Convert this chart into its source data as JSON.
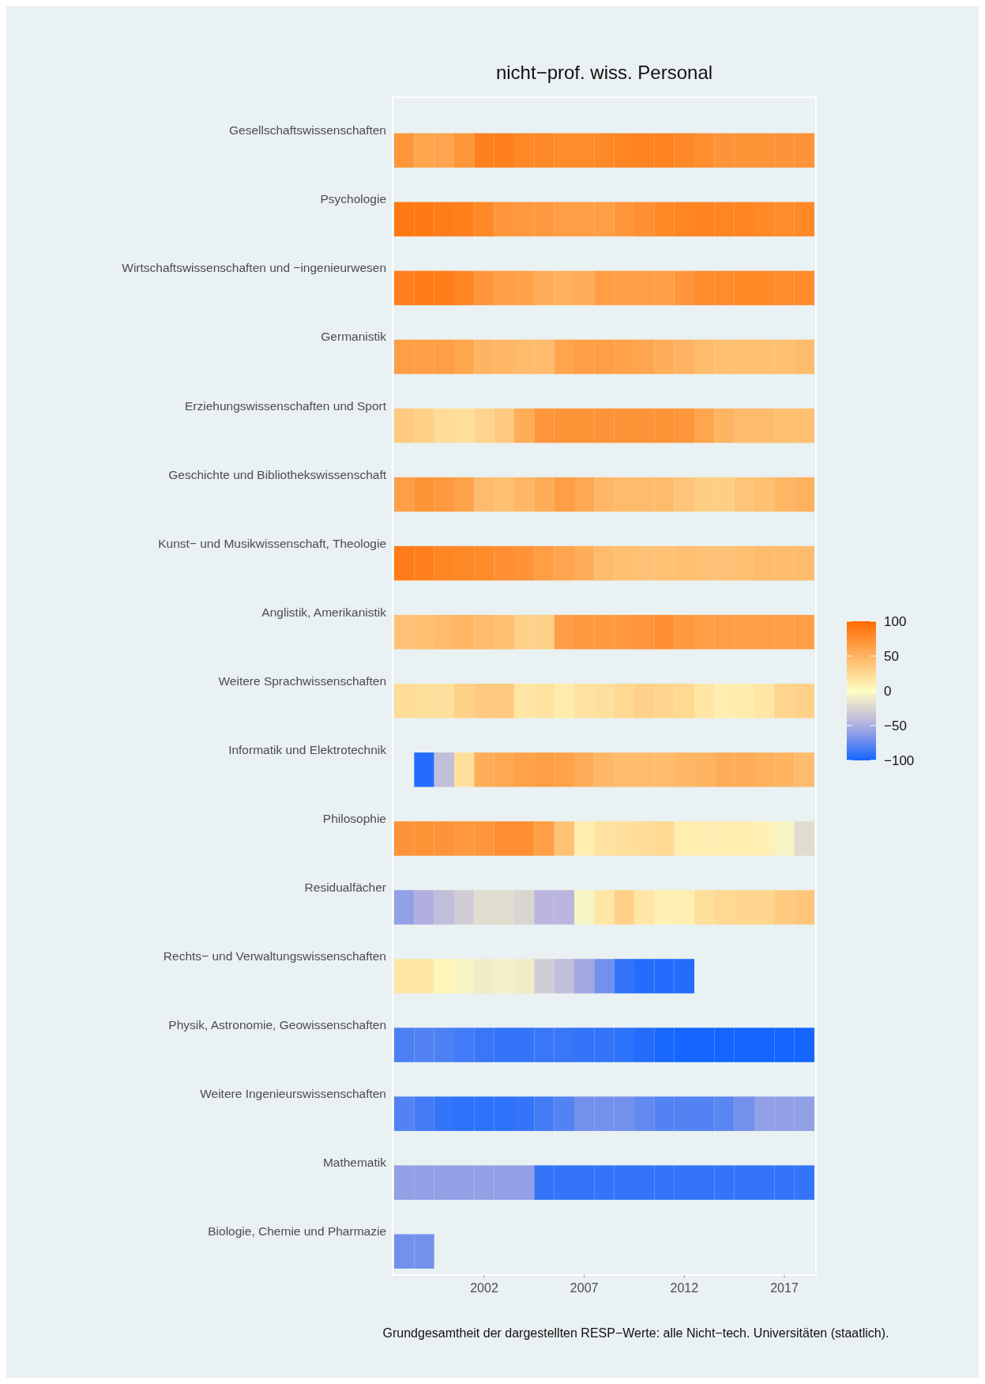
{
  "chart_data": {
    "type": "heatmap",
    "title": "nicht−prof. wiss. Personal",
    "categories": [
      null,
      null,
      null,
      null,
      "2002",
      null,
      null,
      null,
      null,
      "2007",
      null,
      null,
      null,
      null,
      "2012",
      null,
      null,
      null,
      null,
      "2017",
      null
    ],
    "y_categories": [
      "Gesellschaftswissenschaften",
      "Psychologie",
      "Wirtschaftswissenschaften und −ingenieurwesen",
      "Germanistik",
      "Erziehungswissenschaften und Sport",
      "Geschichte und Bibliothekswissenschaft",
      "Kunst− und Musikwissenschaft, Theologie",
      "Anglistik, Amerikanistik",
      "Weitere Sprachwissenschaften",
      "Informatik und Elektrotechnik",
      "Philosophie",
      "Residualfächer",
      "Rechts− und Verwaltungswissenschaften",
      "Physik, Astronomie, Geowissenschaften",
      "Weitere Ingenieurswissenschaften",
      "Mathematik",
      "Biologie, Chemie und Pharmazie"
    ],
    "clim": [
      -100,
      100
    ],
    "cticks": [
      {
        "value": 100,
        "label": "100"
      },
      {
        "value": 50,
        "label": "50"
      },
      {
        "value": 0,
        "label": "0"
      },
      {
        "value": -50,
        "label": "−50"
      },
      {
        "value": -100,
        "label": "−100"
      }
    ],
    "cells": [
      [
        70,
        60,
        60,
        70,
        85,
        85,
        80,
        80,
        78,
        78,
        80,
        82,
        83,
        83,
        80,
        75,
        72,
        72,
        72,
        72,
        72
      ],
      [
        90,
        90,
        88,
        85,
        80,
        70,
        68,
        68,
        65,
        65,
        65,
        70,
        75,
        80,
        82,
        83,
        82,
        82,
        80,
        78,
        80
      ],
      [
        85,
        88,
        88,
        82,
        70,
        65,
        62,
        55,
        52,
        55,
        65,
        65,
        65,
        65,
        70,
        78,
        78,
        80,
        80,
        78,
        78
      ],
      [
        65,
        65,
        65,
        60,
        50,
        48,
        45,
        45,
        60,
        65,
        65,
        62,
        60,
        55,
        50,
        45,
        42,
        42,
        42,
        42,
        45
      ],
      [
        35,
        30,
        22,
        20,
        28,
        35,
        55,
        70,
        72,
        72,
        72,
        72,
        72,
        72,
        70,
        60,
        50,
        45,
        45,
        42,
        42
      ],
      [
        65,
        72,
        68,
        62,
        45,
        42,
        48,
        55,
        65,
        58,
        48,
        45,
        45,
        45,
        38,
        32,
        32,
        38,
        42,
        48,
        52
      ],
      [
        88,
        85,
        82,
        80,
        78,
        75,
        72,
        65,
        60,
        55,
        45,
        42,
        40,
        40,
        42,
        40,
        40,
        42,
        45,
        45,
        45
      ],
      [
        40,
        42,
        45,
        48,
        45,
        42,
        30,
        30,
        65,
        68,
        68,
        68,
        70,
        75,
        68,
        65,
        65,
        65,
        65,
        65,
        65
      ],
      [
        22,
        20,
        20,
        30,
        35,
        35,
        15,
        18,
        12,
        18,
        20,
        25,
        30,
        28,
        25,
        15,
        10,
        12,
        15,
        28,
        30
      ],
      [
        null,
        -95,
        -40,
        20,
        55,
        58,
        62,
        65,
        62,
        55,
        48,
        45,
        45,
        45,
        48,
        50,
        55,
        55,
        52,
        50,
        45
      ],
      [
        72,
        72,
        72,
        68,
        70,
        75,
        75,
        65,
        40,
        10,
        18,
        20,
        22,
        25,
        10,
        10,
        10,
        10,
        8,
        -5,
        -20
      ],
      [
        -60,
        -50,
        -40,
        -30,
        -20,
        -20,
        -25,
        -45,
        -45,
        -5,
        15,
        30,
        15,
        8,
        10,
        20,
        25,
        28,
        28,
        35,
        38
      ],
      [
        15,
        15,
        5,
        -5,
        -10,
        -8,
        -10,
        -30,
        -40,
        -55,
        -70,
        -90,
        -95,
        -95,
        -95,
        null,
        null,
        null,
        null,
        null,
        null
      ],
      [
        -82,
        -80,
        -82,
        -85,
        -88,
        -90,
        -90,
        -88,
        -88,
        -90,
        -90,
        -92,
        -95,
        -98,
        -100,
        -100,
        -100,
        -100,
        -100,
        -100,
        -100
      ],
      [
        -80,
        -85,
        -90,
        -92,
        -92,
        -92,
        -90,
        -85,
        -80,
        -70,
        -70,
        -70,
        -75,
        -80,
        -80,
        -80,
        -78,
        -70,
        -60,
        -60,
        -60
      ],
      [
        -60,
        -60,
        -60,
        -60,
        -60,
        -60,
        -60,
        -90,
        -90,
        -90,
        -90,
        -90,
        -90,
        -90,
        -90,
        -90,
        -90,
        -90,
        -90,
        -90,
        -90
      ],
      [
        -70,
        -70,
        null,
        null,
        null,
        null,
        null,
        null,
        null,
        null,
        null,
        null,
        null,
        null,
        null,
        null,
        null,
        null,
        null,
        null,
        null
      ]
    ],
    "annotations": [
      "Grundgesamtheit der dargestellten RESP−Werte: alle Nicht−tech. Universitäten (staatlich)."
    ]
  }
}
